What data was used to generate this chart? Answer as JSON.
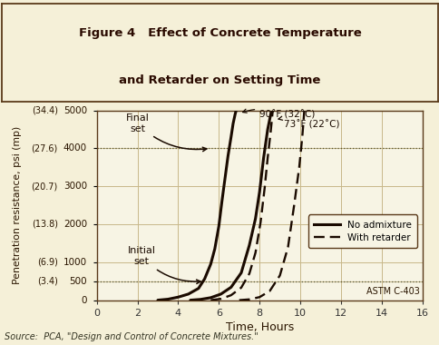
{
  "title_line1": "Figure 4   Effect of Concrete Temperature",
  "title_line2": "and Retarder on Setting Time",
  "xlabel": "Time, Hours",
  "ylabel": "Penetration resistance, psi (mp)",
  "xlim": [
    0,
    16
  ],
  "ylim": [
    0,
    5000
  ],
  "xticks": [
    0,
    2,
    4,
    6,
    8,
    10,
    12,
    14,
    16
  ],
  "ytick_vals": [
    0,
    500,
    1000,
    2000,
    3000,
    4000,
    5000
  ],
  "ytick_main": [
    "0",
    "500",
    "1000",
    "2000",
    "3000",
    "4000",
    "5000"
  ],
  "ytick_mp": [
    "",
    "(3.4)",
    "(6.9)",
    "(13.8)",
    "(20.7)",
    "(27.6)",
    "(34.4)"
  ],
  "bg_color": "#f5f0d8",
  "plot_bg": "#f7f4e4",
  "grid_color": "#c8b88a",
  "line_color": "#1a0a00",
  "border_color": "#5a3a1a",
  "initial_set_y": 500,
  "final_set_y": 4000,
  "source_text": "Source:  PCA, \"Design and Control of Concrete Mixtures.\"",
  "curve_90F_solid_x": [
    3.0,
    3.5,
    4.0,
    4.5,
    5.0,
    5.3,
    5.6,
    5.8,
    6.0,
    6.15,
    6.3,
    6.45,
    6.6,
    6.7,
    6.8,
    6.85
  ],
  "curve_90F_solid_y": [
    0,
    25,
    80,
    160,
    310,
    560,
    950,
    1350,
    1950,
    2600,
    3200,
    3800,
    4300,
    4650,
    4900,
    5000
  ],
  "curve_73F_solid_x": [
    4.6,
    5.1,
    5.6,
    6.1,
    6.6,
    7.1,
    7.5,
    7.8,
    8.0,
    8.2,
    8.4,
    8.55,
    8.65
  ],
  "curve_73F_solid_y": [
    0,
    20,
    65,
    160,
    340,
    720,
    1450,
    2150,
    2850,
    3750,
    4500,
    4900,
    5000
  ],
  "curve_90F_dash_x": [
    5.6,
    6.1,
    6.6,
    7.1,
    7.5,
    7.8,
    8.05,
    8.25,
    8.4,
    8.55,
    8.65
  ],
  "curve_90F_dash_y": [
    0,
    35,
    130,
    330,
    700,
    1250,
    2050,
    2950,
    3750,
    4450,
    5000
  ],
  "curve_73F_dash_x": [
    7.0,
    7.5,
    8.0,
    8.5,
    9.0,
    9.4,
    9.7,
    9.95,
    10.1,
    10.2
  ],
  "curve_73F_dash_y": [
    0,
    20,
    80,
    240,
    650,
    1400,
    2500,
    3500,
    4300,
    5000
  ],
  "label_90F": "90˚F (32˚C)",
  "label_73F": "73˚F (22˚C)",
  "legend_solid": "No admixture",
  "legend_dash": "With retarder",
  "astm_text": "ASTM C-403"
}
